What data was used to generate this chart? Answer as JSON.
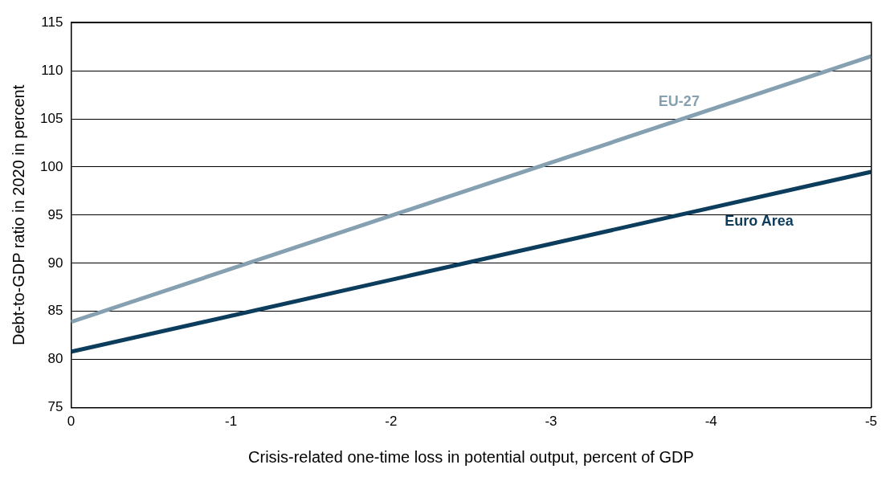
{
  "chart_data": {
    "type": "line",
    "xlabel": "Crisis-related one-time loss in potential output, percent of GDP",
    "ylabel": "Debt-to-GDP ratio in 2020 in percent",
    "x": [
      0,
      -5
    ],
    "series": [
      {
        "name": "EU-27",
        "color": "#85a0b0",
        "values": [
          83.9,
          111.5
        ]
      },
      {
        "name": "Euro Area",
        "color": "#0d3d5c",
        "values": [
          80.8,
          99.5
        ]
      }
    ],
    "xlim": [
      0,
      -5
    ],
    "xticks": [
      0,
      -1,
      -2,
      -3,
      -4,
      -5
    ],
    "ylim": [
      75,
      115
    ],
    "yticks": [
      75,
      80,
      85,
      90,
      95,
      100,
      105,
      110,
      115
    ],
    "grid": "y",
    "legend": false,
    "marker": "none",
    "line_style": "solid"
  }
}
